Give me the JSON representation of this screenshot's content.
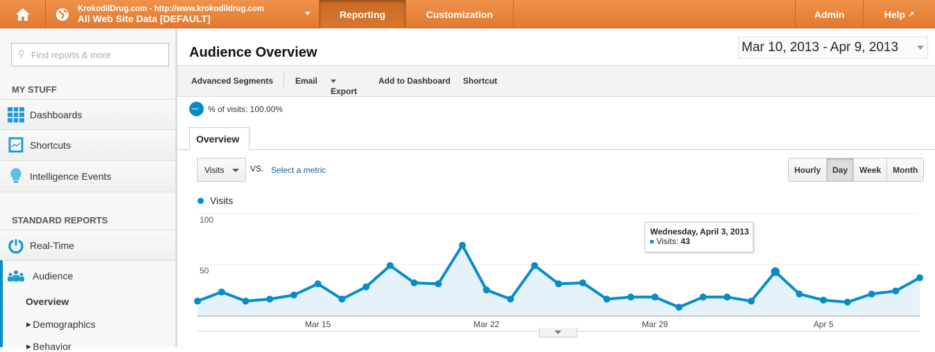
{
  "header": {
    "account_line1": "KrokodilDrug.com - http://www.krokodildrug.com",
    "account_line2": "All Web Site Data [DEFAULT]",
    "tabs": [
      "Reporting",
      "Customization"
    ],
    "admin": "Admin",
    "help": "Help"
  },
  "sidebar": {
    "search_placeholder": "Find reports & more",
    "my_stuff": "MY STUFF",
    "my_items": [
      "Dashboards",
      "Shortcuts",
      "Intelligence Events"
    ],
    "standard_reports": "STANDARD REPORTS",
    "std_items": [
      "Real-Time",
      "Audience"
    ],
    "sub_items": [
      "Overview",
      "Demographics",
      "Behavior"
    ]
  },
  "main": {
    "title": "Audience Overview",
    "date_range": "Mar 10, 2013 - Apr 9, 2013",
    "toolbar": [
      "Advanced Segments",
      "Email",
      "Export",
      "Add to Dashboard",
      "Shortcut"
    ],
    "segment": "% of visits: 100.00%",
    "tab": "Overview",
    "metric": "Visits",
    "vs": "VS.",
    "select_metric": "Select a metric",
    "granularity": [
      "Hourly",
      "Day",
      "Week",
      "Month"
    ],
    "selected_granularity": "Day"
  },
  "chart_data": {
    "type": "area",
    "series": [
      {
        "name": "Visits",
        "color": "#058dc7",
        "values": [
          14,
          23,
          14,
          16,
          20,
          31,
          16,
          28,
          49,
          32,
          31,
          69,
          25,
          16,
          49,
          31,
          32,
          16,
          18,
          18,
          8,
          18,
          18,
          14,
          43,
          21,
          15,
          13,
          21,
          24,
          37
        ]
      }
    ],
    "x_start": "Mar 10, 2013",
    "x_end": "Apr 9, 2013",
    "x_ticks": [
      "Mar 15",
      "Mar 22",
      "Mar 29",
      "Apr 5"
    ],
    "y_ticks": [
      "100",
      "50"
    ],
    "ylim": [
      0,
      100
    ],
    "legend": "Visits",
    "tooltip": {
      "title": "Wednesday, April 3, 2013",
      "label": "Visits:",
      "value": "43"
    }
  }
}
